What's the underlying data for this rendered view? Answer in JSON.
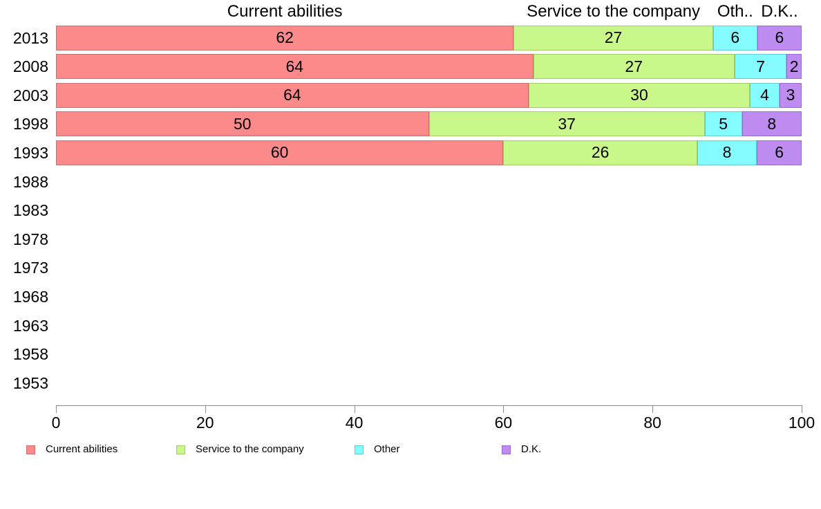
{
  "page": {
    "background": "#ffffff"
  },
  "chart_data": {
    "type": "bar",
    "orientation": "horizontal",
    "stacked": true,
    "title": "",
    "column_headers": [
      "Current abilities",
      "Service to the company",
      "Oth..",
      "D.K.."
    ],
    "categories": [
      "2013",
      "2008",
      "2003",
      "1998",
      "1993",
      "1988",
      "1983",
      "1978",
      "1973",
      "1968",
      "1963",
      "1958",
      "1953"
    ],
    "series_names": [
      "Current abilities",
      "Service to the company",
      "Other",
      "D.K."
    ],
    "series_colors": [
      "#fd8a8a",
      "#c9f78a",
      "#84fbfe",
      "#be8cf0"
    ],
    "series_border_colors": [
      "#c96f6f",
      "#9fcc63",
      "#60cdd3",
      "#9a6ad1"
    ],
    "rows": [
      [
        62,
        27,
        6,
        6
      ],
      [
        64,
        27,
        7,
        2
      ],
      [
        64,
        30,
        4,
        3
      ],
      [
        50,
        37,
        5,
        8
      ],
      [
        60,
        26,
        8,
        6
      ],
      [],
      [],
      [],
      [],
      [],
      [],
      [],
      []
    ],
    "xlim": [
      0,
      100
    ],
    "x_ticks": [
      0,
      20,
      40,
      60,
      80,
      100
    ],
    "grid": false,
    "legend_position": "bottom",
    "legend_items": [
      {
        "label": "Current abilities",
        "color": "#fd8a8a",
        "border": "#c96f6f"
      },
      {
        "label": "Service to the company",
        "color": "#c9f78a",
        "border": "#9fcc63"
      },
      {
        "label": "Other",
        "color": "#84fbfe",
        "border": "#60cdd3"
      },
      {
        "label": "D.K.",
        "color": "#be8cf0",
        "border": "#9a6ad1"
      }
    ]
  }
}
